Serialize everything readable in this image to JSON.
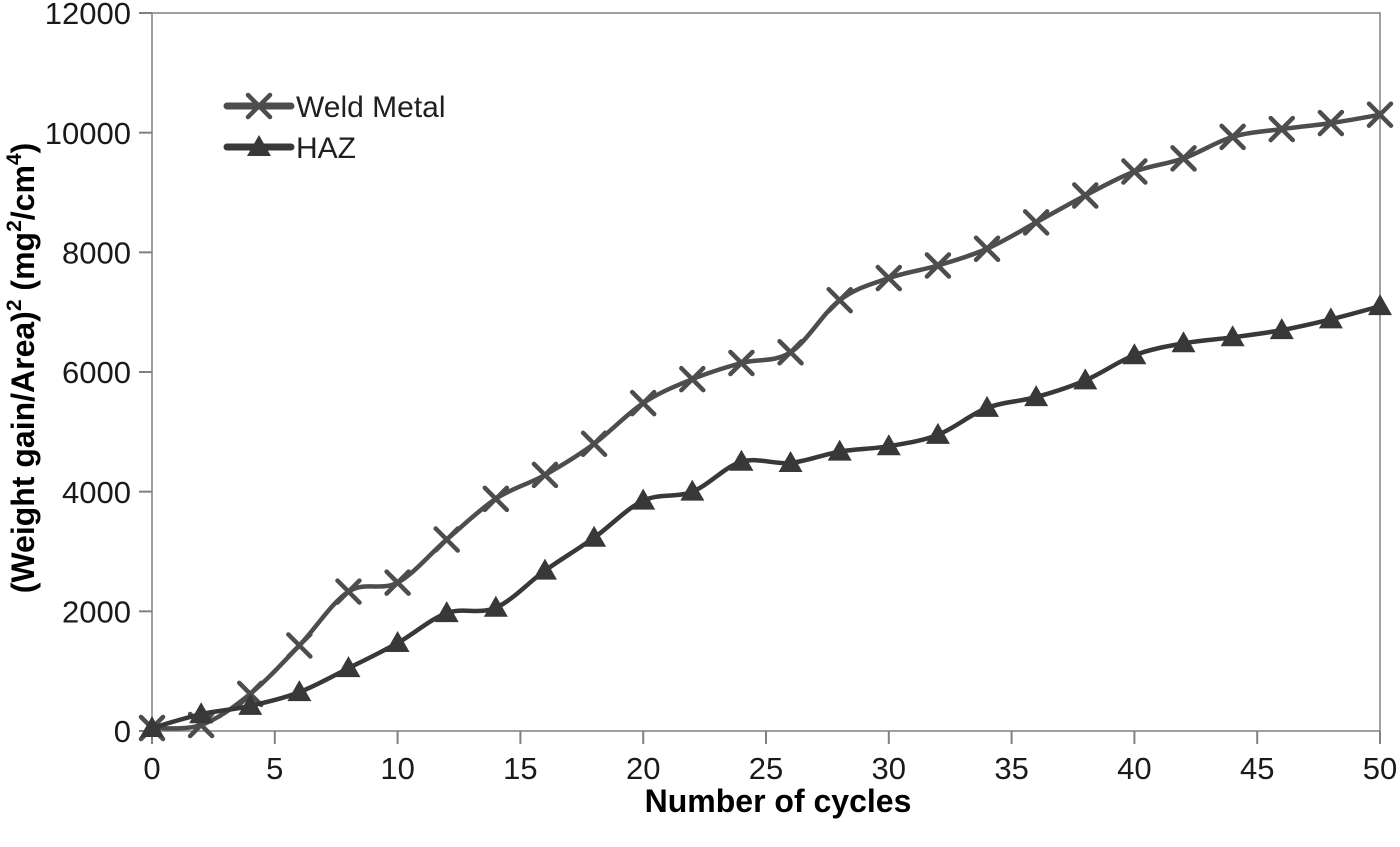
{
  "chart_data": {
    "type": "line",
    "xlabel": "Number of cycles",
    "ylabel": "(Weight gain/Area)² (mg²/cm⁴)",
    "ylabel_parts": [
      {
        "t": "(Weight gain/Area)",
        "sup": false
      },
      {
        "t": "2",
        "sup": true
      },
      {
        "t": " (mg",
        "sup": false
      },
      {
        "t": "2",
        "sup": true
      },
      {
        "t": "/cm",
        "sup": false
      },
      {
        "t": "4",
        "sup": true
      },
      {
        "t": ")",
        "sup": false
      }
    ],
    "x": [
      0,
      2,
      4,
      6,
      8,
      10,
      12,
      14,
      16,
      18,
      20,
      22,
      24,
      26,
      28,
      30,
      32,
      34,
      36,
      38,
      40,
      42,
      44,
      46,
      48,
      50
    ],
    "series": [
      {
        "name": "Weld Metal",
        "marker": "x",
        "color": "#4d4d4d",
        "values": [
          50,
          100,
          620,
          1430,
          2330,
          2480,
          3200,
          3880,
          4280,
          4800,
          5480,
          5880,
          6150,
          6330,
          7200,
          7570,
          7780,
          8060,
          8500,
          8950,
          9350,
          9570,
          9930,
          10060,
          10160,
          10300
        ]
      },
      {
        "name": "HAZ",
        "marker": "triangle",
        "color": "#383838",
        "values": [
          50,
          280,
          420,
          650,
          1050,
          1470,
          1970,
          2060,
          2680,
          3230,
          3850,
          4000,
          4500,
          4480,
          4670,
          4760,
          4950,
          5400,
          5580,
          5860,
          6280,
          6480,
          6580,
          6700,
          6880,
          7100
        ]
      }
    ],
    "xlim": [
      0,
      50
    ],
    "ylim": [
      0,
      12000
    ],
    "x_ticks": [
      0,
      5,
      10,
      15,
      20,
      25,
      30,
      35,
      40,
      45,
      50
    ],
    "x_tick_labels": [
      "0",
      "5",
      "10",
      "15",
      "20",
      "25",
      "30",
      "35",
      "40",
      "45",
      "50"
    ],
    "y_ticks": [
      0,
      2000,
      4000,
      6000,
      8000,
      10000,
      12000
    ],
    "y_tick_labels": [
      "0",
      "2000",
      "4000",
      "6000",
      "8000",
      "10000",
      "12000"
    ],
    "grid": false,
    "legend_position": "top-left-inside",
    "axis_color": "#808080",
    "text_color": "#1a1a1a",
    "background": "#ffffff"
  }
}
